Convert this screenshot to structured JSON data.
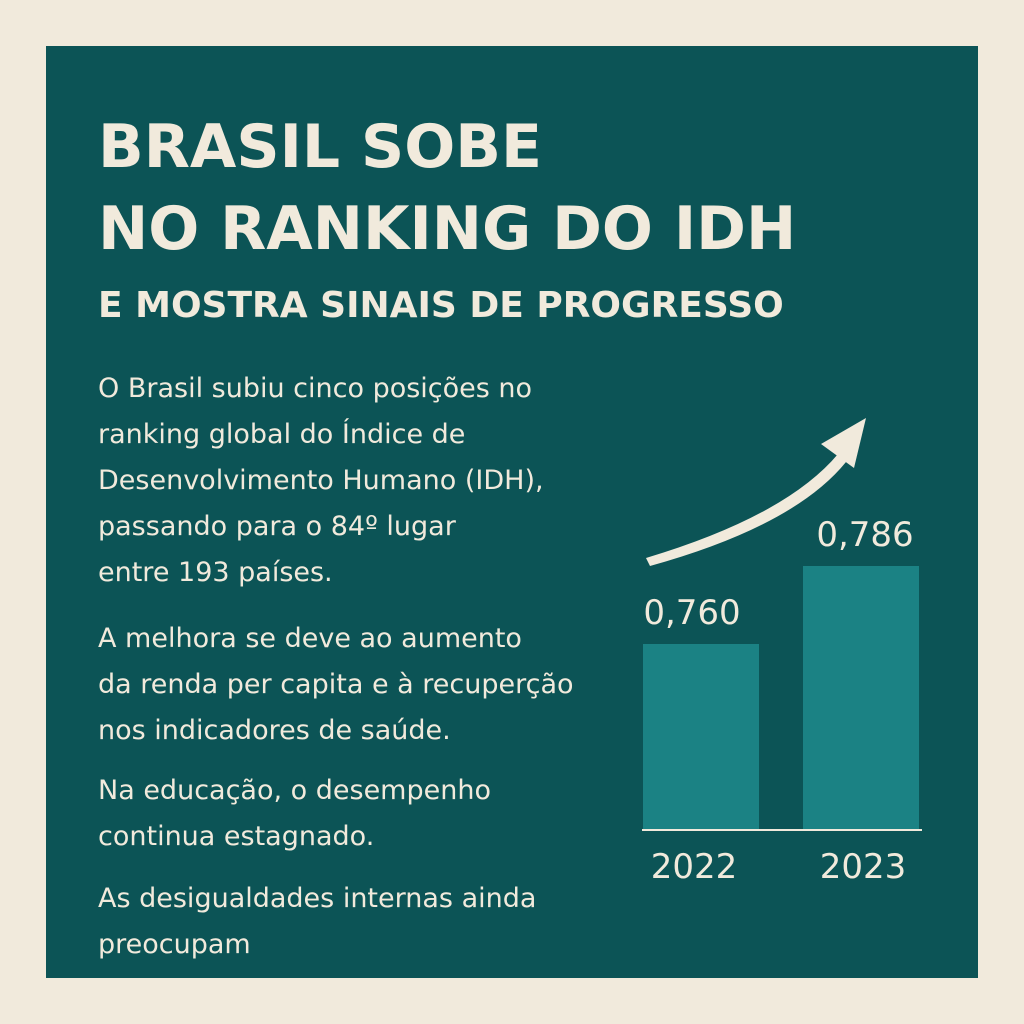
{
  "headline": {
    "line1": "BRASIL SOBE",
    "line2": "NO RANKING DO IDH",
    "subtitle": "E MOSTRA SINAIS DE PROGRESSO"
  },
  "paragraphs": [
    [
      "O Brasil subiu cinco posições no",
      "ranking global do Índice de",
      "Desenvolvimento Humano (IDH),",
      "passando para o 84º lugar",
      "entre 193 países."
    ],
    [
      "A melhora se deve ao aumento",
      "da renda per capita e à recuperção",
      "nos indicadores de saúde."
    ],
    [
      "Na educação, o desempenho",
      "continua estagnado."
    ],
    [
      "As desigualdades internas ainda",
      "preocupam"
    ]
  ],
  "colors": {
    "background": "#f1eadc",
    "panel": "#0c5456",
    "bar": "#1b8284",
    "text": "#f1eadc"
  },
  "icons": {
    "trend": "trend-up-arrow-icon"
  },
  "chart_data": {
    "type": "bar",
    "categories": [
      "2022",
      "2023"
    ],
    "values": [
      0.76,
      0.786
    ],
    "value_labels": [
      "0,760",
      "0,786"
    ],
    "title": "",
    "xlabel": "",
    "ylabel": "",
    "ylim": [
      0.7,
      0.8
    ],
    "grid": false
  }
}
